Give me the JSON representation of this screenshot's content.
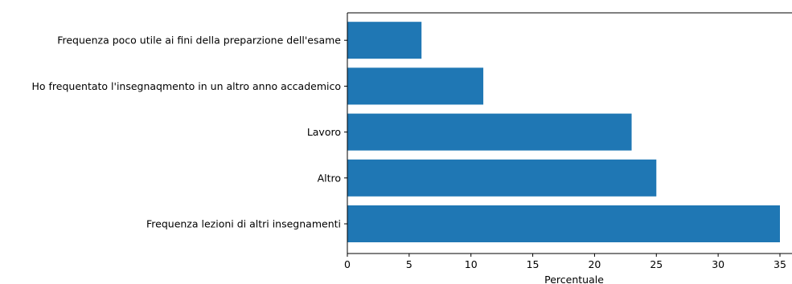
{
  "chart_data": {
    "type": "bar",
    "orientation": "horizontal",
    "categories": [
      "Frequenza lezioni di altri insegnamenti",
      "Altro",
      "Lavoro",
      "Ho frequentato l'insegnaqmento in un altro anno accademico",
      "Frequenza poco utile ai fini della preparzione dell'esame"
    ],
    "values": [
      35,
      25,
      23,
      11,
      6
    ],
    "xlabel": "Percentuale",
    "ylabel": "",
    "title": "",
    "xlim": [
      0,
      36
    ],
    "xticks": [
      0,
      5,
      10,
      15,
      20,
      25,
      30,
      35
    ],
    "bar_color": "#1f77b4",
    "grid": false,
    "legend": "none"
  }
}
